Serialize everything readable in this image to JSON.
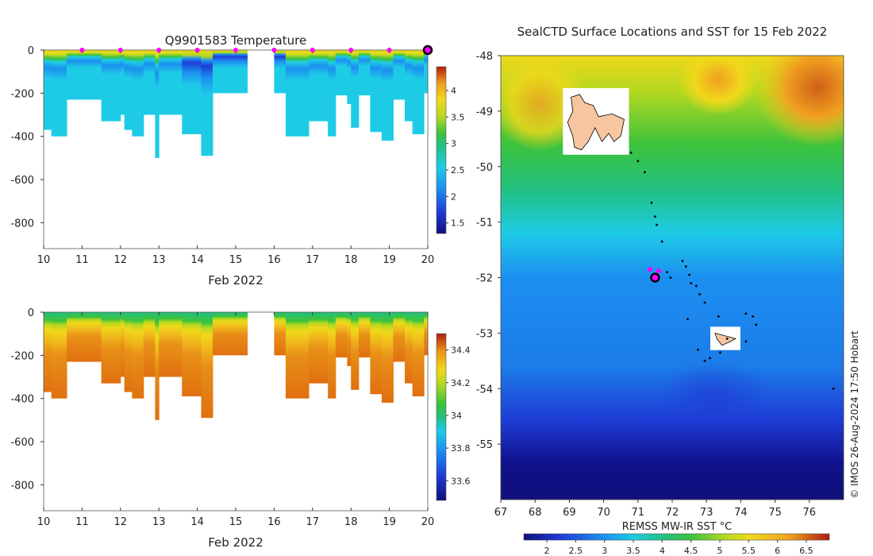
{
  "figure": {
    "copyright": "© IMOS 26-Aug-2024 17:50 Hobart"
  },
  "colors": {
    "seal_marker": "#ff00ff",
    "track": "#000000",
    "land": "#f7c59f"
  },
  "chart_data": [
    {
      "id": "temperature",
      "type": "heatmap",
      "title": "Q9901583  Temperature",
      "xlabel": "Feb 2022",
      "ylabel": "",
      "xlim": [
        10,
        20
      ],
      "ylim": [
        -920,
        0
      ],
      "x_ticks": [
        10,
        11,
        12,
        13,
        14,
        15,
        16,
        17,
        18,
        19,
        20
      ],
      "y_ticks": [
        0,
        -200,
        -400,
        -600,
        -800
      ],
      "colorbar": {
        "min": 1.3,
        "max": 4.45,
        "ticks": [
          "1.5",
          "2",
          "2.5",
          "3",
          "3.5",
          "4"
        ],
        "tick_values": [
          1.5,
          2,
          2.5,
          3,
          3.5,
          4
        ]
      },
      "surfacing_days": [
        11,
        12,
        13,
        14,
        15,
        16,
        17,
        18,
        19
      ],
      "latest_day": 20,
      "profile_max_depth_m": [
        {
          "day": 10.0,
          "depth": 370
        },
        {
          "day": 10.2,
          "depth": 400
        },
        {
          "day": 10.6,
          "depth": 230
        },
        {
          "day": 11.2,
          "depth": 230
        },
        {
          "day": 11.5,
          "depth": 330
        },
        {
          "day": 12.0,
          "depth": 300
        },
        {
          "day": 12.1,
          "depth": 370
        },
        {
          "day": 12.3,
          "depth": 400
        },
        {
          "day": 12.6,
          "depth": 300
        },
        {
          "day": 12.9,
          "depth": 500
        },
        {
          "day": 13.0,
          "depth": 300
        },
        {
          "day": 13.6,
          "depth": 390
        },
        {
          "day": 14.1,
          "depth": 490
        },
        {
          "day": 14.4,
          "depth": 200
        },
        {
          "day": 15.3,
          "depth": null
        },
        {
          "day": 16.0,
          "depth": 200
        },
        {
          "day": 16.3,
          "depth": 400
        },
        {
          "day": 16.9,
          "depth": 330
        },
        {
          "day": 17.4,
          "depth": 400
        },
        {
          "day": 17.6,
          "depth": 210
        },
        {
          "day": 17.9,
          "depth": 250
        },
        {
          "day": 18.0,
          "depth": 360
        },
        {
          "day": 18.2,
          "depth": 210
        },
        {
          "day": 18.5,
          "depth": 380
        },
        {
          "day": 18.8,
          "depth": 420
        },
        {
          "day": 19.1,
          "depth": 230
        },
        {
          "day": 19.4,
          "depth": 330
        },
        {
          "day": 19.6,
          "depth": 390
        },
        {
          "day": 19.9,
          "depth": 200
        }
      ]
    },
    {
      "id": "salinity",
      "type": "heatmap",
      "title": "",
      "xlabel": "Feb 2022",
      "ylabel": "",
      "xlim": [
        10,
        20
      ],
      "ylim": [
        -920,
        0
      ],
      "x_ticks": [
        10,
        11,
        12,
        13,
        14,
        15,
        16,
        17,
        18,
        19,
        20
      ],
      "y_ticks": [
        0,
        -200,
        -400,
        -600,
        -800
      ],
      "colorbar": {
        "min": 33.48,
        "max": 34.5,
        "ticks": [
          "33.6",
          "33.8",
          "34",
          "34.2",
          "34.4"
        ],
        "tick_values": [
          33.6,
          33.8,
          34.0,
          34.2,
          34.4
        ]
      }
    },
    {
      "id": "sst_map",
      "type": "heatmap",
      "title": "SealCTD Surface Locations and SST for 15 Feb 2022",
      "xlabel": "",
      "ylabel": "",
      "xlim": [
        67,
        77
      ],
      "ylim": [
        -56,
        -48
      ],
      "x_ticks": [
        67,
        68,
        69,
        70,
        71,
        72,
        73,
        74,
        75,
        76
      ],
      "y_ticks": [
        -48,
        -49,
        -50,
        -51,
        -52,
        -53,
        -54,
        -55
      ],
      "colorbar": {
        "label": "REMSS MW-IR SST °C",
        "min": 1.6,
        "max": 6.9,
        "ticks": [
          "2",
          "2.5",
          "3",
          "3.5",
          "4",
          "4.5",
          "5",
          "5.5",
          "6",
          "6.5"
        ],
        "tick_values": [
          2,
          2.5,
          3,
          3.5,
          4,
          4.5,
          5,
          5.5,
          6,
          6.5
        ]
      },
      "seal_positions": [
        {
          "lon": 71.5,
          "lat": -52.0,
          "latest": true
        },
        {
          "lon": 71.35,
          "lat": -51.85
        },
        {
          "lon": 71.6,
          "lat": -51.88
        }
      ],
      "track_points": [
        {
          "lon": 70.8,
          "lat": -49.75
        },
        {
          "lon": 71.0,
          "lat": -49.9
        },
        {
          "lon": 71.2,
          "lat": -50.1
        },
        {
          "lon": 71.4,
          "lat": -50.65
        },
        {
          "lon": 71.5,
          "lat": -50.9
        },
        {
          "lon": 71.55,
          "lat": -51.05
        },
        {
          "lon": 71.7,
          "lat": -51.35
        },
        {
          "lon": 72.3,
          "lat": -51.7
        },
        {
          "lon": 72.4,
          "lat": -51.8
        },
        {
          "lon": 72.5,
          "lat": -51.95
        },
        {
          "lon": 72.55,
          "lat": -52.1
        },
        {
          "lon": 72.7,
          "lat": -52.15
        },
        {
          "lon": 72.8,
          "lat": -52.3
        },
        {
          "lon": 72.95,
          "lat": -52.45
        },
        {
          "lon": 72.45,
          "lat": -52.75
        },
        {
          "lon": 73.35,
          "lat": -52.7
        },
        {
          "lon": 73.6,
          "lat": -53.1
        },
        {
          "lon": 72.75,
          "lat": -53.3
        },
        {
          "lon": 72.95,
          "lat": -53.5
        },
        {
          "lon": 73.1,
          "lat": -53.45
        },
        {
          "lon": 73.4,
          "lat": -53.35
        },
        {
          "lon": 74.15,
          "lat": -52.65
        },
        {
          "lon": 74.35,
          "lat": -52.7
        },
        {
          "lon": 74.45,
          "lat": -52.85
        },
        {
          "lon": 74.15,
          "lat": -53.15
        },
        {
          "lon": 71.85,
          "lat": -51.9
        },
        {
          "lon": 71.95,
          "lat": -52.0
        },
        {
          "lon": 76.7,
          "lat": -54.0
        }
      ],
      "islands": [
        {
          "name": "Kerguelen",
          "outline": [
            [
              69.05,
              -48.75
            ],
            [
              69.3,
              -48.7
            ],
            [
              69.45,
              -48.85
            ],
            [
              69.7,
              -48.9
            ],
            [
              69.85,
              -49.1
            ],
            [
              70.25,
              -49.05
            ],
            [
              70.6,
              -49.15
            ],
            [
              70.5,
              -49.45
            ],
            [
              70.3,
              -49.55
            ],
            [
              70.15,
              -49.4
            ],
            [
              69.95,
              -49.55
            ],
            [
              69.75,
              -49.3
            ],
            [
              69.55,
              -49.55
            ],
            [
              69.35,
              -49.7
            ],
            [
              69.15,
              -49.65
            ],
            [
              69.1,
              -49.45
            ],
            [
              68.95,
              -49.2
            ],
            [
              69.1,
              -49.0
            ]
          ]
        },
        {
          "name": "Heard",
          "outline": [
            [
              73.25,
              -53.0
            ],
            [
              73.55,
              -53.05
            ],
            [
              73.85,
              -53.1
            ],
            [
              73.7,
              -53.15
            ],
            [
              73.45,
              -53.22
            ],
            [
              73.3,
              -53.1
            ]
          ]
        }
      ]
    }
  ]
}
